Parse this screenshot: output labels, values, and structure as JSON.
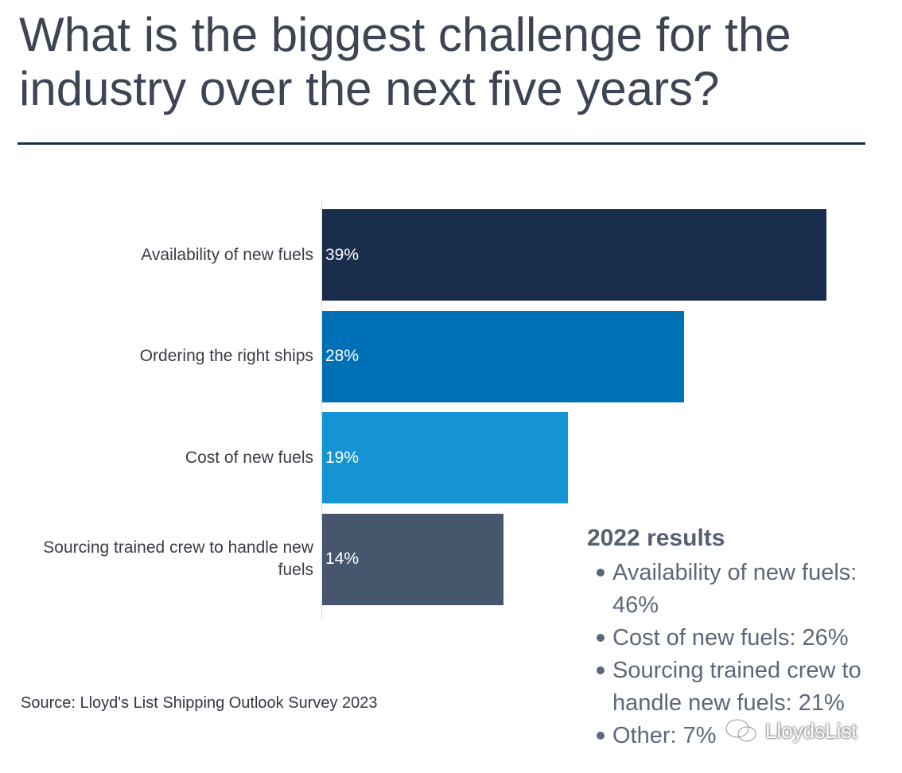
{
  "title": "What is the biggest challenge for the industry over the next five years?",
  "chart_data": {
    "type": "bar",
    "orientation": "horizontal",
    "title": "What is the biggest challenge for the industry over the next five years?",
    "categories": [
      "Availability of new fuels",
      "Ordering the right ships",
      "Cost of new fuels",
      "Sourcing trained crew to handle new fuels"
    ],
    "values": [
      39,
      28,
      19,
      14
    ],
    "data_labels": [
      "39%",
      "28%",
      "19%",
      "14%"
    ],
    "colors": [
      "#1b2d4c",
      "#0070b6",
      "#1594d3",
      "#45566d"
    ],
    "unit": "%",
    "xlim": [
      0,
      40
    ],
    "grid": false
  },
  "source": "Source: Lloyd's List Shipping Outlook Survey 2023",
  "results_2022": {
    "title": "2022 results",
    "items": [
      "Availability of new fuels: 46%",
      "Cost of new fuels: 26%",
      "Sourcing trained crew to handle new fuels: 21%",
      "Other: 7%"
    ]
  },
  "watermark": {
    "icon": "wechat-icon",
    "text": "LloydsList"
  }
}
